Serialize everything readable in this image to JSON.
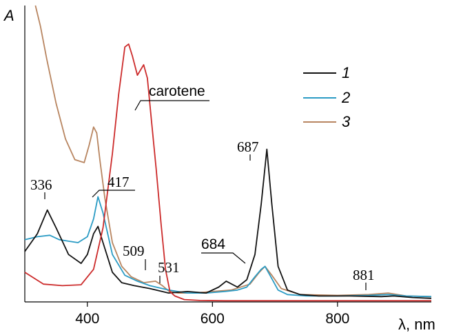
{
  "chart_data": {
    "type": "line",
    "xlabel": "λ, nm",
    "ylabel": "A",
    "xlim": [
      300,
      950
    ],
    "ylim": [
      0,
      1
    ],
    "x_ticks": [
      400,
      600,
      800
    ],
    "grid": false,
    "legend_position": "top-right",
    "colors": {
      "s1": "#111111",
      "s2": "#2a9bc4",
      "s3": "#b88560",
      "carotene": "#cc2a2a"
    },
    "series": [
      {
        "name": "1",
        "x": [
          300,
          320,
          336,
          350,
          370,
          390,
          400,
          410,
          417,
          425,
          440,
          455,
          475,
          500,
          530,
          560,
          590,
          610,
          622,
          640,
          655,
          668,
          678,
          687,
          695,
          705,
          720,
          740,
          770,
          820,
          870,
          890,
          920,
          950
        ],
        "y": [
          0.17,
          0.23,
          0.31,
          0.25,
          0.16,
          0.13,
          0.16,
          0.23,
          0.255,
          0.2,
          0.1,
          0.065,
          0.055,
          0.045,
          0.03,
          0.035,
          0.03,
          0.05,
          0.07,
          0.05,
          0.075,
          0.16,
          0.33,
          0.515,
          0.33,
          0.12,
          0.04,
          0.025,
          0.02,
          0.02,
          0.018,
          0.02,
          0.015,
          0.012
        ]
      },
      {
        "name": "2",
        "x": [
          300,
          320,
          340,
          355,
          370,
          385,
          400,
          410,
          417,
          425,
          440,
          460,
          480,
          500,
          530,
          560,
          590,
          620,
          640,
          655,
          668,
          678,
          684,
          692,
          705,
          720,
          750,
          800,
          850,
          881,
          910,
          950
        ],
        "y": [
          0.21,
          0.22,
          0.225,
          0.21,
          0.205,
          0.2,
          0.22,
          0.28,
          0.355,
          0.3,
          0.16,
          0.09,
          0.07,
          0.055,
          0.04,
          0.03,
          0.03,
          0.035,
          0.04,
          0.05,
          0.085,
          0.11,
          0.12,
          0.09,
          0.04,
          0.025,
          0.02,
          0.02,
          0.022,
          0.025,
          0.02,
          0.018
        ]
      },
      {
        "name": "3",
        "x": [
          317,
          325,
          335,
          350,
          365,
          380,
          395,
          403,
          410,
          415,
          420,
          428,
          440,
          455,
          470,
          490,
          509,
          520,
          531,
          545,
          570,
          600,
          630,
          660,
          675,
          684,
          695,
          710,
          740,
          800,
          850,
          881,
          910,
          950
        ],
        "y": [
          1.0,
          0.93,
          0.82,
          0.67,
          0.55,
          0.48,
          0.47,
          0.53,
          0.59,
          0.57,
          0.48,
          0.35,
          0.2,
          0.12,
          0.085,
          0.065,
          0.07,
          0.055,
          0.035,
          0.03,
          0.03,
          0.035,
          0.04,
          0.06,
          0.1,
          0.12,
          0.09,
          0.045,
          0.025,
          0.022,
          0.025,
          0.03,
          0.02,
          0.018
        ]
      },
      {
        "name": "carotene",
        "x": [
          300,
          330,
          360,
          390,
          410,
          425,
          440,
          450,
          460,
          466,
          472,
          480,
          490,
          496,
          503,
          510,
          518,
          525,
          532,
          540,
          555,
          580,
          620,
          700,
          800,
          950
        ],
        "y": [
          0.1,
          0.06,
          0.055,
          0.058,
          0.11,
          0.25,
          0.5,
          0.7,
          0.86,
          0.87,
          0.83,
          0.765,
          0.8,
          0.755,
          0.6,
          0.45,
          0.26,
          0.11,
          0.035,
          0.02,
          0.008,
          0.005,
          0.004,
          0.004,
          0.004,
          0.004
        ]
      }
    ],
    "annotations": [
      "336",
      "417",
      "509",
      "531",
      "684",
      "687",
      "881",
      "carotene"
    ]
  }
}
